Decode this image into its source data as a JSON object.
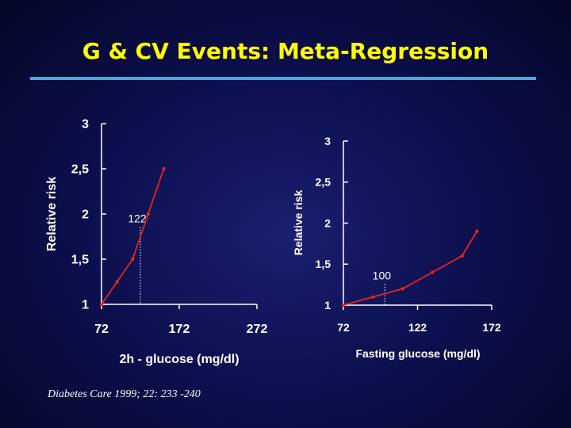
{
  "slide": {
    "title": "G & CV Events: Meta-Regression",
    "citation": "Diabetes Care 1999; 22: 233 -240",
    "colors": {
      "background": "#0d1050",
      "title": "#ffff00",
      "rule": "#4aa8d8",
      "series": "#e8231e",
      "text": "#ffffff"
    }
  },
  "chart_data": [
    {
      "type": "line",
      "xlabel": "2h - glucose (mg/dl)",
      "ylabel": "Relative risk",
      "xlim": [
        72,
        272
      ],
      "ylim": [
        1,
        3
      ],
      "x_ticks": [
        "72",
        "172",
        "272"
      ],
      "y_ticks": [
        "1",
        "1,5",
        "2",
        "2,5",
        "3"
      ],
      "x_tick_values": [
        72,
        172,
        272
      ],
      "y_tick_values": [
        1,
        1.5,
        2,
        2.5,
        3
      ],
      "series": [
        {
          "x": [
            72,
            92,
            112,
            132,
            152
          ],
          "values": [
            1.0,
            1.25,
            1.5,
            2.0,
            2.5
          ]
        }
      ],
      "reference": {
        "x": 122,
        "label": "122"
      },
      "grid": false
    },
    {
      "type": "line",
      "xlabel": "Fasting glucose (mg/dl)",
      "ylabel": "Relative risk",
      "xlim": [
        72,
        172
      ],
      "ylim": [
        1,
        3
      ],
      "x_ticks": [
        "72",
        "122",
        "172"
      ],
      "y_ticks": [
        "1",
        "1,5",
        "2",
        "2,5",
        "3"
      ],
      "x_tick_values": [
        72,
        122,
        172
      ],
      "y_tick_values": [
        1,
        1.5,
        2,
        2.5,
        3
      ],
      "series": [
        {
          "x": [
            72,
            92,
            112,
            132,
            152,
            162
          ],
          "values": [
            1.0,
            1.1,
            1.2,
            1.4,
            1.6,
            1.9
          ]
        }
      ],
      "reference": {
        "x": 100,
        "label": "100"
      },
      "grid": false
    }
  ]
}
